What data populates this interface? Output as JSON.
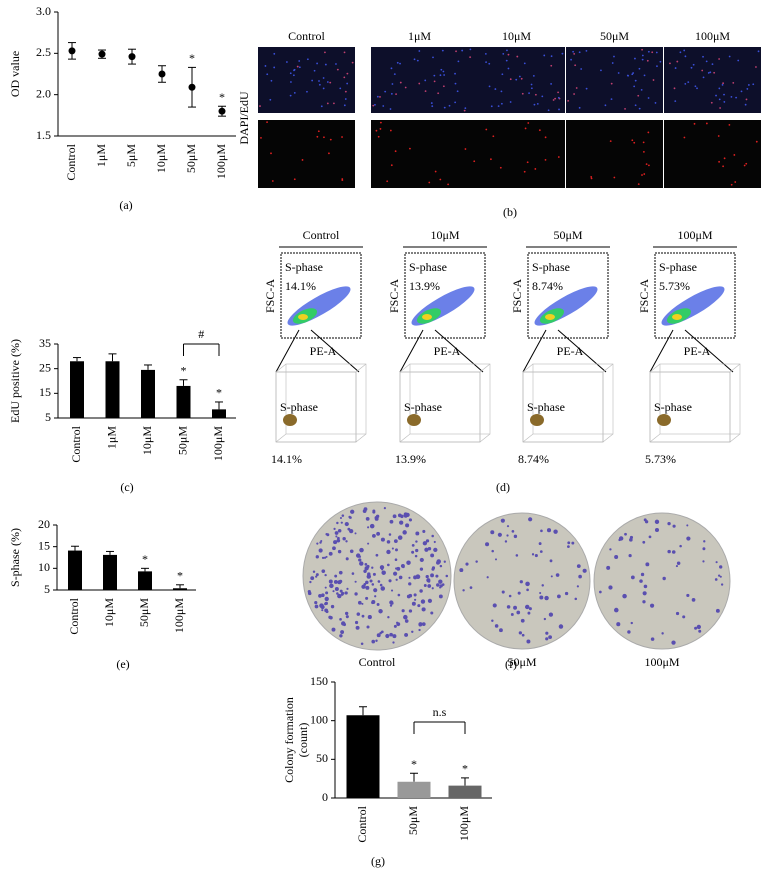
{
  "chart_data": [
    {
      "type": "scatter",
      "panel_label": "(a)",
      "y_label": "OD value",
      "categories": [
        "Control",
        "1μM",
        "5μM",
        "10μM",
        "50μM",
        "100μM"
      ],
      "values": [
        2.53,
        2.49,
        2.46,
        2.25,
        2.09,
        1.8
      ],
      "errors": [
        0.1,
        0.05,
        0.09,
        0.1,
        0.24,
        0.06
      ],
      "color": "#000000",
      "ylim": [
        1.5,
        3.0
      ],
      "yticks": [
        1.5,
        {
          "value": 2,
          "label": "2.0"
        },
        2.5,
        {
          "value": 3,
          "label": "3.0"
        }
      ],
      "annotations": [
        {
          "text": "*",
          "category": "50μM"
        },
        {
          "text": "*",
          "category": "100μM"
        }
      ]
    },
    {
      "type": "bar",
      "panel_label": "(c)",
      "y_label": "EdU positive (%)",
      "categories": [
        "Control",
        "1μM",
        "10μM",
        "50μM",
        "100μM"
      ],
      "values": [
        28,
        28,
        24.5,
        18,
        8.5
      ],
      "errors": [
        1.5,
        3,
        2,
        2.5,
        3
      ],
      "color": "#000000",
      "ylim": [
        5,
        35
      ],
      "yticks": [
        5,
        15,
        25,
        35
      ],
      "annotations": [
        {
          "text": "*",
          "category": "50μM"
        },
        {
          "text": "*",
          "category": "100μM"
        }
      ],
      "brackets": [
        {
          "text": "#",
          "from": "50μM",
          "to": "100μM"
        }
      ]
    },
    {
      "type": "bar",
      "panel_label": "(e)",
      "y_label": "S-phase (%)",
      "categories": [
        "Control",
        "10μM",
        "50μM",
        "100μM"
      ],
      "values": [
        14.1,
        13.1,
        9.3,
        5.4
      ],
      "errors": [
        1,
        0.8,
        0.7,
        0.8
      ],
      "color": "#000000",
      "ylim": [
        5,
        20
      ],
      "yticks": [
        5,
        10,
        15,
        20
      ],
      "annotations": [
        {
          "text": "*",
          "category": "50μM"
        },
        {
          "text": "*",
          "category": "100μM"
        }
      ]
    },
    {
      "type": "bar",
      "panel_label": "(g)",
      "y_label": [
        "Colony formation",
        "(count)"
      ],
      "categories": [
        "Control",
        "50μM",
        "100μM"
      ],
      "values": [
        107,
        21,
        16
      ],
      "errors": [
        11,
        11,
        10
      ],
      "colors": [
        "#000000",
        "#999999",
        "#666666"
      ],
      "ylim": [
        0,
        150
      ],
      "yticks": [
        0,
        50,
        100,
        150
      ],
      "annotations": [
        {
          "text": "*",
          "category": "50μM"
        },
        {
          "text": "*",
          "category": "100μM"
        }
      ],
      "brackets": [
        {
          "text": "n.s",
          "from": "50μM",
          "to": "100μM"
        }
      ]
    }
  ],
  "image_panels": {
    "b": {
      "panel_label": "(b)",
      "columns": [
        "Control",
        "1μM",
        "10μM",
        "50μM",
        "100μM"
      ],
      "row_label": "DAPI/EdU"
    },
    "d": {
      "panel_label": "(d)",
      "columns": [
        "Control",
        "10μM",
        "50μM",
        "100μM"
      ],
      "percentages": [
        "14.1%",
        "13.9%",
        "8.74%",
        "5.73%"
      ],
      "gate_label": "S-phase",
      "y_axis": "FSC-A",
      "x_axis": "PE-A"
    },
    "f": {
      "panel_label": "(f)",
      "columns": [
        "Control",
        "50μM",
        "100μM"
      ]
    }
  }
}
